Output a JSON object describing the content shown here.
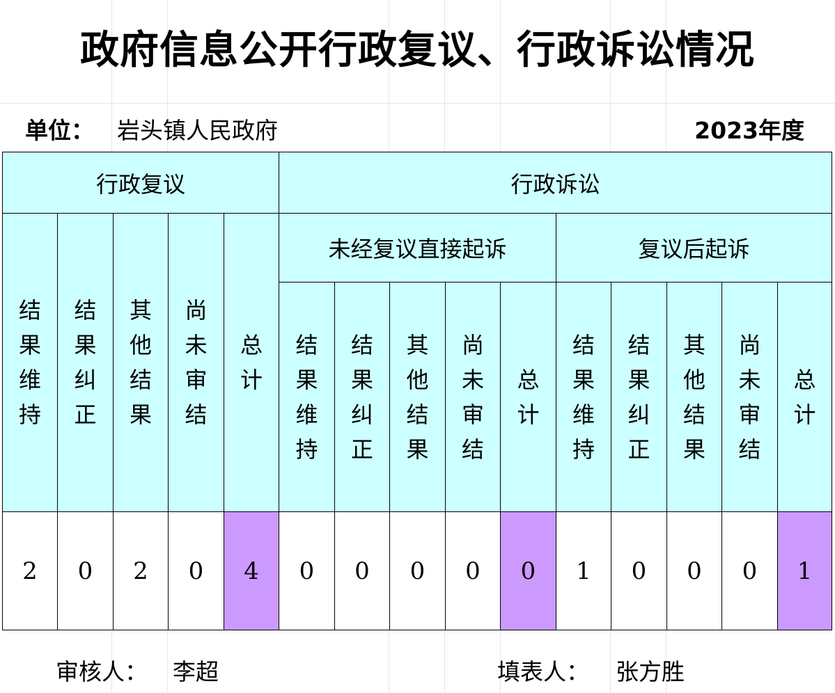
{
  "title": "政府信息公开行政复议、行政诉讼情况",
  "unit_label": "单位：",
  "unit_name": "岩头镇人民政府",
  "year": "2023年度",
  "headers": {
    "review": "行政复议",
    "litigation": "行政诉讼",
    "direct": "未经复议直接起诉",
    "after_review": "复议后起诉"
  },
  "columns": {
    "review": [
      "结果维持",
      "结果纠正",
      "其他结果",
      "尚未审结",
      "总计"
    ],
    "direct": [
      "结果维持",
      "结果纠正",
      "其他结果",
      "尚未审结",
      "总计"
    ],
    "after_review": [
      "结果维持",
      "结果纠正",
      "其他结果",
      "尚未审结",
      "总计"
    ]
  },
  "values": {
    "review": [
      "2",
      "0",
      "2",
      "0",
      "4"
    ],
    "direct": [
      "0",
      "0",
      "0",
      "0",
      "0"
    ],
    "after_review": [
      "1",
      "0",
      "0",
      "0",
      "1"
    ]
  },
  "footer": {
    "reviewer_label": "审核人：",
    "reviewer_name": "李超",
    "filler_label": "填表人：",
    "filler_name": "张方胜"
  },
  "colors": {
    "header_bg": "#ccffff",
    "total_bg": "#cc99ff"
  }
}
